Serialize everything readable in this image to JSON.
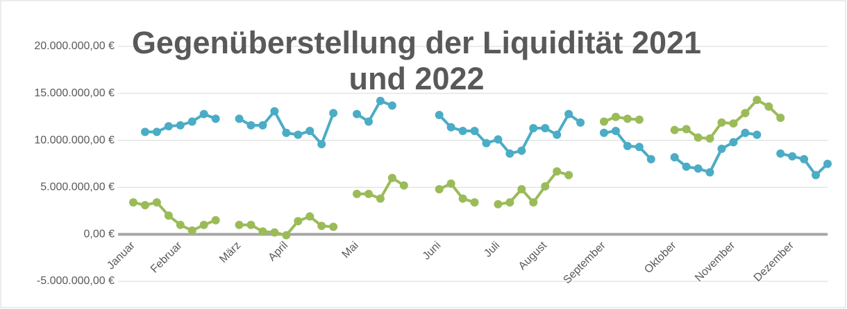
{
  "chart_data": {
    "type": "line",
    "title": "Gegenüberstellung der Liquidität 2021 und 2022",
    "categories": [
      "Januar",
      null,
      null,
      null,
      "Februar",
      null,
      null,
      null,
      null,
      "März",
      null,
      null,
      null,
      "April",
      null,
      null,
      null,
      null,
      null,
      "Mai",
      null,
      null,
      null,
      null,
      null,
      null,
      "Juni",
      null,
      null,
      null,
      null,
      "Juli",
      null,
      null,
      null,
      "August",
      null,
      null,
      null,
      null,
      "September",
      null,
      null,
      null,
      null,
      null,
      "Oktober",
      null,
      null,
      null,
      null,
      "November",
      null,
      null,
      null,
      null,
      "Dezember",
      null,
      null,
      null
    ],
    "series": [
      {
        "color": "#4bacc6",
        "values": [
          null,
          10900000,
          10900000,
          11500000,
          11600000,
          12000000,
          12800000,
          12300000,
          null,
          12300000,
          11600000,
          11600000,
          13100000,
          10800000,
          10600000,
          11000000,
          9600000,
          12900000,
          null,
          12800000,
          12000000,
          14200000,
          13700000,
          null,
          null,
          null,
          12700000,
          11400000,
          11000000,
          11000000,
          9700000,
          10100000,
          8600000,
          8900000,
          11300000,
          11300000,
          10600000,
          12800000,
          11900000,
          null,
          10800000,
          11000000,
          9400000,
          9300000,
          8000000,
          null,
          8200000,
          7200000,
          7000000,
          6600000,
          9100000,
          9800000,
          10800000,
          10600000,
          null,
          8600000,
          8300000,
          8000000,
          6300000,
          7500000
        ]
      },
      {
        "color": "#9bbb59",
        "values": [
          3400000,
          3100000,
          3400000,
          2000000,
          1000000,
          400000,
          1000000,
          1500000,
          null,
          1000000,
          1000000,
          300000,
          200000,
          -100000,
          1400000,
          1900000,
          900000,
          800000,
          null,
          4300000,
          4300000,
          3800000,
          6000000,
          5200000,
          null,
          null,
          4800000,
          5400000,
          3800000,
          3400000,
          null,
          3200000,
          3400000,
          4800000,
          3400000,
          5100000,
          6700000,
          6300000,
          null,
          null,
          12000000,
          12500000,
          12300000,
          12200000,
          null,
          null,
          11100000,
          11200000,
          10300000,
          10200000,
          11900000,
          11800000,
          12900000,
          14300000,
          13600000,
          12400000,
          null,
          null,
          null,
          null
        ]
      }
    ],
    "ylim": [
      -5000000,
      20000000
    ],
    "yticks": [
      {
        "value": -5000000,
        "label": "-5.000.000,00 €"
      },
      {
        "value": 0,
        "label": "0,00 €"
      },
      {
        "value": 5000000,
        "label": "5.000.000,00 €"
      },
      {
        "value": 10000000,
        "label": "10.000.000,00 €"
      },
      {
        "value": 15000000,
        "label": "15.000.000,00 €"
      },
      {
        "value": 20000000,
        "label": "20.000.000,00 €"
      }
    ],
    "grid": true
  }
}
